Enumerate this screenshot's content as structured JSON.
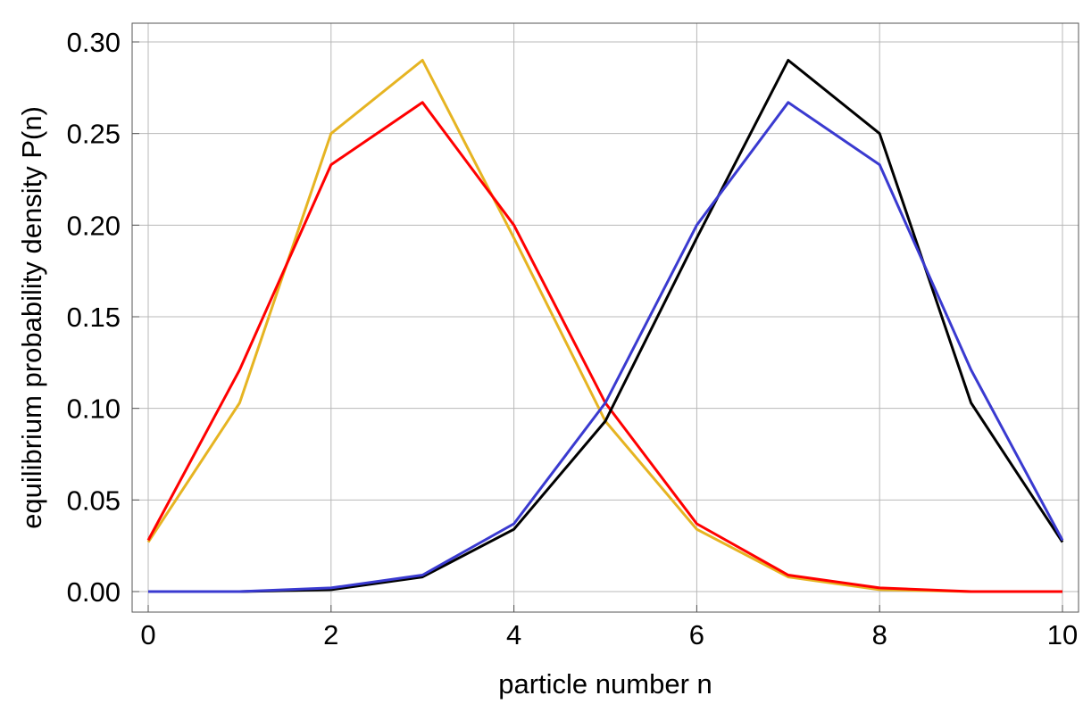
{
  "chart_data": {
    "type": "line",
    "title": "",
    "xlabel": "particle number  n",
    "ylabel": "equilibrium probability density  P(n)",
    "xlim": [
      0,
      10
    ],
    "ylim": [
      0,
      0.3
    ],
    "grid": true,
    "x": [
      0,
      1,
      2,
      3,
      4,
      5,
      6,
      7,
      8,
      9,
      10
    ],
    "xticks": [
      0,
      2,
      4,
      6,
      8,
      10
    ],
    "xtick_labels": [
      "0",
      "2",
      "4",
      "6",
      "8",
      "10"
    ],
    "yticks": [
      0,
      0.05,
      0.1,
      0.15,
      0.2,
      0.25,
      0.3
    ],
    "ytick_labels": [
      "0.00",
      "0.05",
      "0.10",
      "0.15",
      "0.20",
      "0.25",
      "0.30"
    ],
    "series": [
      {
        "color": "#e6b422",
        "values": [
          0.027,
          0.103,
          0.25,
          0.29,
          0.193,
          0.093,
          0.034,
          0.008,
          0.001,
          0.0,
          0.0
        ]
      },
      {
        "color": "#ff0000",
        "values": [
          0.028,
          0.121,
          0.233,
          0.267,
          0.2,
          0.103,
          0.037,
          0.009,
          0.002,
          0.0,
          0.0
        ]
      },
      {
        "color": "#000000",
        "values": [
          0.0,
          0.0,
          0.001,
          0.008,
          0.034,
          0.093,
          0.193,
          0.29,
          0.25,
          0.103,
          0.027
        ]
      },
      {
        "color": "#3a3ad0",
        "values": [
          0.0,
          0.0,
          0.002,
          0.009,
          0.037,
          0.103,
          0.2,
          0.267,
          0.233,
          0.121,
          0.028
        ]
      }
    ]
  }
}
